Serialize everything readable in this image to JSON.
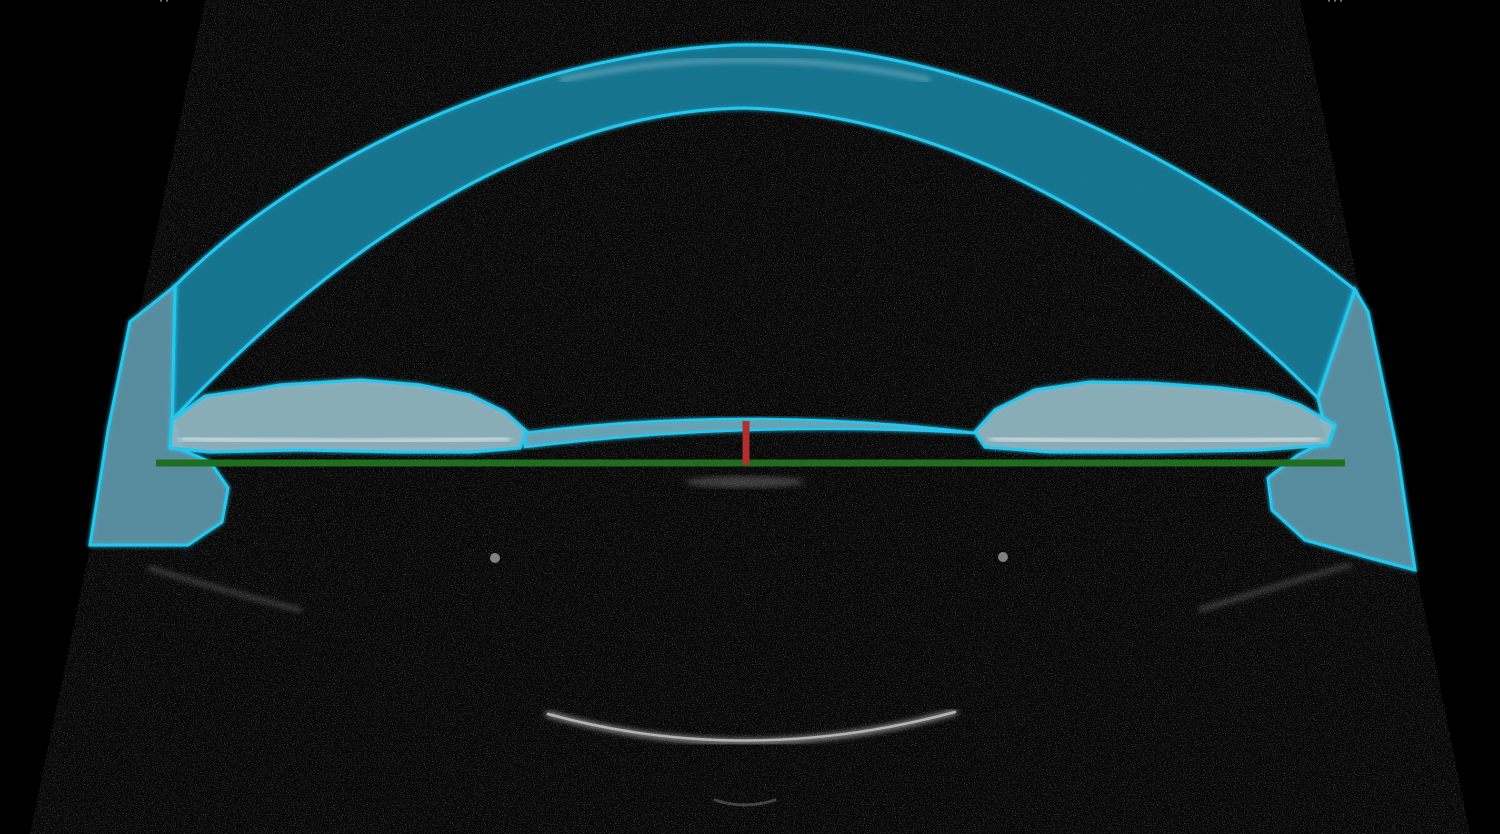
{
  "scan": {
    "modality": "anterior-segment-oct",
    "corner_marks": {
      "left": "''",
      "right": "'''"
    }
  },
  "overlay_colors": {
    "segmentation_outline": "#22c8f0",
    "segmentation_fill": "#1a7d9a",
    "angle_to_angle_line": "#1e6e1e",
    "depth_marker": "#b03030",
    "background": "#000000"
  },
  "icons": {
    "cornea": "cornea-segment-icon",
    "iris": "iris-segment-icon",
    "lens": "lens-reflex-icon"
  }
}
